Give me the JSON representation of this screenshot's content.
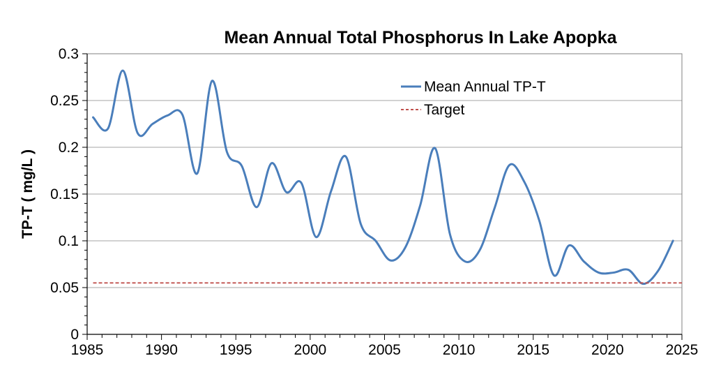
{
  "chart_data": {
    "type": "line",
    "title": "Mean Annual Total Phosphorus In Lake Apopka",
    "xlabel": "",
    "ylabel": "TP-T ( mg/L )",
    "xlim": [
      1985,
      2025
    ],
    "ylim": [
      0,
      0.3
    ],
    "xticks": [
      "1985",
      "1990",
      "1995",
      "2000",
      "2005",
      "2010",
      "2015",
      "2020",
      "2025"
    ],
    "yticks": [
      "0",
      "0.05",
      "0.1",
      "0.15",
      "0.2",
      "0.25",
      "0.3"
    ],
    "grid": "horizontal",
    "legend_position": "top-right",
    "series": [
      {
        "name": "Mean Annual TP-T",
        "color": "#4a7ebb",
        "style": "solid",
        "x": [
          1985.4,
          1986.4,
          1987.4,
          1988.4,
          1989.4,
          1990.4,
          1991.4,
          1992.4,
          1993.4,
          1994.4,
          1995.4,
          1996.4,
          1997.4,
          1998.4,
          1999.4,
          2000.4,
          2001.4,
          2002.4,
          2003.4,
          2004.4,
          2005.4,
          2006.4,
          2007.4,
          2008.4,
          2009.4,
          2010.4,
          2011.4,
          2012.4,
          2013.4,
          2014.4,
          2015.4,
          2016.4,
          2017.4,
          2018.4,
          2019.4,
          2020.4,
          2021.4,
          2022.4,
          2023.4,
          2024.4
        ],
        "values": [
          0.232,
          0.22,
          0.282,
          0.215,
          0.225,
          0.234,
          0.235,
          0.172,
          0.271,
          0.195,
          0.18,
          0.136,
          0.183,
          0.152,
          0.162,
          0.104,
          0.153,
          0.19,
          0.118,
          0.1,
          0.079,
          0.093,
          0.138,
          0.199,
          0.107,
          0.078,
          0.09,
          0.135,
          0.181,
          0.163,
          0.122,
          0.063,
          0.095,
          0.078,
          0.066,
          0.066,
          0.069,
          0.054,
          0.068,
          0.1
        ]
      },
      {
        "name": "Target",
        "color": "#c0504d",
        "style": "dashed",
        "x": [
          1985.4,
          2025
        ],
        "values": [
          0.055,
          0.055
        ]
      }
    ]
  }
}
